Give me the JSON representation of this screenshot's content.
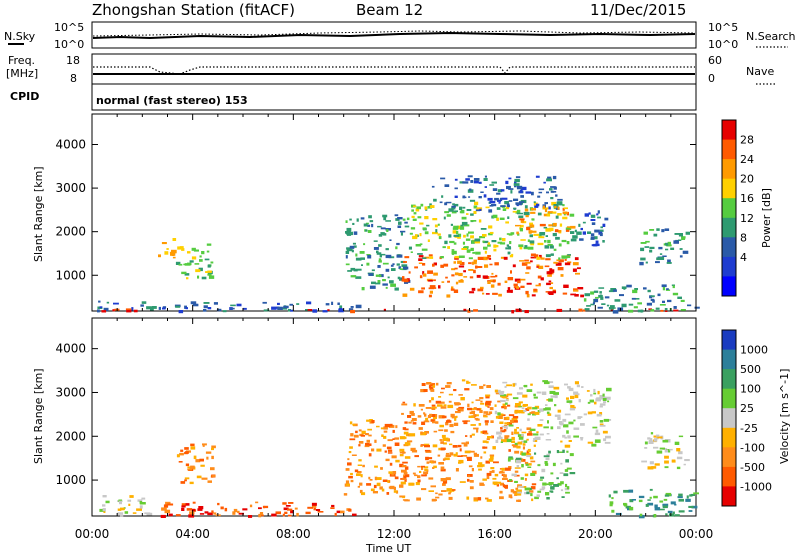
{
  "header": {
    "station": "Zhongshan Station (fitACF)",
    "beam": "Beam 12",
    "date": "11/Dec/2015"
  },
  "noise_panel": {
    "left_label": "N.Sky",
    "right_label": "N.Search",
    "ticks": [
      "10^5",
      "10^0"
    ]
  },
  "freq_panel": {
    "left_label_1": "Freq.",
    "left_label_2": "[MHz]",
    "left_ticks": [
      "18",
      "8"
    ],
    "right_ticks": [
      "60",
      "0"
    ],
    "right_label": "Nave"
  },
  "cpid": {
    "label": "CPID",
    "mode": "normal (fast stereo) 153"
  },
  "chart_data": [
    {
      "type": "heatmap",
      "name": "power",
      "ylabel": "Slant Range [km]",
      "xlabel": "Time UT",
      "x_ticks": [
        "00:00",
        "04:00",
        "08:00",
        "12:00",
        "16:00",
        "20:00",
        "00:00"
      ],
      "x_range_hours": [
        0,
        24
      ],
      "y_ticks": [
        1000,
        2000,
        3000,
        4000
      ],
      "ylim": [
        180,
        4700
      ],
      "colorbar_label": "Power [dB]",
      "colorbar_ticks": [
        "28",
        "24",
        "20",
        "16",
        "12",
        "8",
        "4"
      ],
      "colorbar_colors": [
        "#e60000",
        "#ff5a00",
        "#ff9a00",
        "#ffd000",
        "#55cc40",
        "#2e9a70",
        "#2a5aa8",
        "#1e3cd0",
        "#0000ff"
      ],
      "regions": [
        {
          "t0": 0.2,
          "t1": 10.6,
          "r0": 200,
          "r1": 420,
          "level": 6
        },
        {
          "t0": 0.1,
          "t1": 24,
          "r0": 200,
          "r1": 240,
          "level": 0
        },
        {
          "t0": 3.3,
          "t1": 4.8,
          "r0": 950,
          "r1": 1800,
          "level": 4
        },
        {
          "t0": 2.6,
          "t1": 3.4,
          "r0": 1400,
          "r1": 1900,
          "level": 3
        },
        {
          "t0": 10.0,
          "t1": 12.5,
          "r0": 700,
          "r1": 2400,
          "level": 5
        },
        {
          "t0": 12.3,
          "t1": 19.4,
          "r0": 550,
          "r1": 1500,
          "level": 1
        },
        {
          "t0": 12.5,
          "t1": 19.0,
          "r0": 1400,
          "r1": 2700,
          "level": 4
        },
        {
          "t0": 13.5,
          "t1": 18.5,
          "r0": 2500,
          "r1": 3300,
          "level": 6
        },
        {
          "t0": 16.8,
          "t1": 19.0,
          "r0": 2000,
          "r1": 2600,
          "level": 2
        },
        {
          "t0": 19.0,
          "t1": 20.4,
          "r0": 1600,
          "r1": 2500,
          "level": 6
        },
        {
          "t0": 21.7,
          "t1": 23.6,
          "r0": 1300,
          "r1": 2100,
          "level": 5
        },
        {
          "t0": 19.5,
          "t1": 24,
          "r0": 200,
          "r1": 800,
          "level": 5
        }
      ]
    },
    {
      "type": "heatmap",
      "name": "velocity",
      "ylabel": "Slant Range [km]",
      "xlabel": "Time UT",
      "x_ticks": [
        "00:00",
        "04:00",
        "08:00",
        "12:00",
        "16:00",
        "20:00",
        "00:00"
      ],
      "x_range_hours": [
        0,
        24
      ],
      "y_ticks": [
        1000,
        2000,
        3000,
        4000
      ],
      "ylim": [
        180,
        4700
      ],
      "colorbar_label": "Velocity [m s^-1]",
      "colorbar_ticks": [
        "1000",
        "500",
        "100",
        "25",
        "-25",
        "-100",
        "-500",
        "-1000"
      ],
      "colorbar_colors": [
        "#1a3cc0",
        "#2c7f9a",
        "#3aa060",
        "#66cc33",
        "#c8c8c8",
        "#ffb000",
        "#ff8c1a",
        "#ff5a00",
        "#e60000"
      ],
      "regions": [
        {
          "t0": 0.2,
          "t1": 2.2,
          "r0": 200,
          "r1": 700,
          "level": 4
        },
        {
          "t0": 2.5,
          "t1": 10.5,
          "r0": 200,
          "r1": 520,
          "level": 7
        },
        {
          "t0": 3.3,
          "t1": 4.8,
          "r0": 950,
          "r1": 1900,
          "level": 6
        },
        {
          "t0": 10.0,
          "t1": 12.5,
          "r0": 700,
          "r1": 2400,
          "level": 6
        },
        {
          "t0": 12.2,
          "t1": 17.5,
          "r0": 550,
          "r1": 2800,
          "level": 6
        },
        {
          "t0": 13.0,
          "t1": 16.5,
          "r0": 2300,
          "r1": 3300,
          "level": 6
        },
        {
          "t0": 16.0,
          "t1": 20.5,
          "r0": 1800,
          "r1": 3300,
          "level": 4
        },
        {
          "t0": 21.7,
          "t1": 23.6,
          "r0": 1300,
          "r1": 2100,
          "level": 4
        },
        {
          "t0": 16.5,
          "t1": 19.0,
          "r0": 600,
          "r1": 1700,
          "level": 3
        },
        {
          "t0": 20.5,
          "t1": 24,
          "r0": 200,
          "r1": 800,
          "level": 2
        }
      ]
    }
  ]
}
